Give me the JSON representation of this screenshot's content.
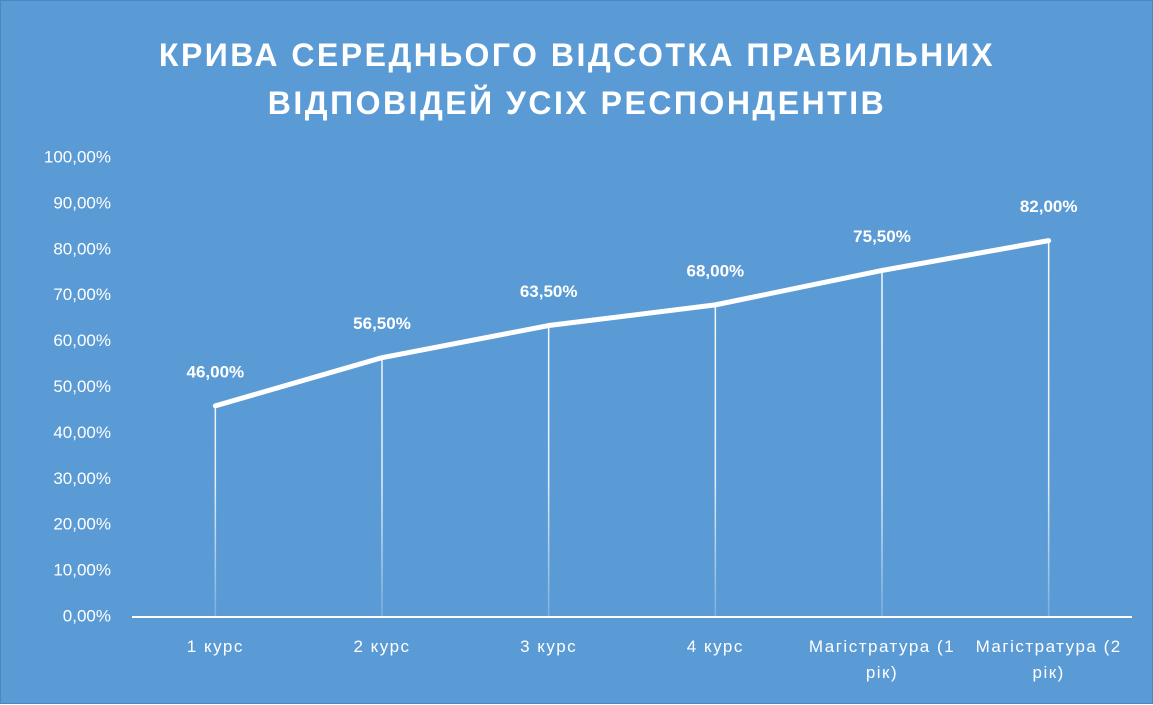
{
  "chart_data": {
    "type": "line",
    "title": "КРИВА СЕРЕДНЬОГО ВІДСОТКА ПРАВИЛЬНИХ ВІДПОВІДЕЙ УСІХ РЕСПОНДЕНТІВ",
    "categories": [
      "1 курс",
      "2 курс",
      "3 курс",
      "4 курс",
      "Магістратура (1 рік)",
      "Магістратура (2 рік)"
    ],
    "values": [
      46,
      56.5,
      63.5,
      68,
      75.5,
      82
    ],
    "value_labels": [
      "46,00%",
      "56,50%",
      "63,50%",
      "68,00%",
      "75,50%",
      "82,00%"
    ],
    "color": "#ffffff",
    "ylim": [
      0,
      100
    ],
    "yticks": [
      {
        "value": 0,
        "label": "0,00%"
      },
      {
        "value": 10,
        "label": "10,00%"
      },
      {
        "value": 20,
        "label": "20,00%"
      },
      {
        "value": 30,
        "label": "30,00%"
      },
      {
        "value": 40,
        "label": "40,00%"
      },
      {
        "value": 50,
        "label": "50,00%"
      },
      {
        "value": 60,
        "label": "60,00%"
      },
      {
        "value": 70,
        "label": "70,00%"
      },
      {
        "value": 80,
        "label": "80,00%"
      },
      {
        "value": 90,
        "label": "90,00%"
      },
      {
        "value": 100,
        "label": "100,00%"
      }
    ],
    "grid": false,
    "drop_lines": true
  }
}
